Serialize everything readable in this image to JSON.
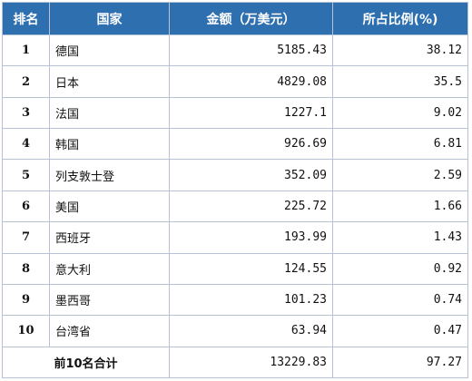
{
  "table": {
    "headers": {
      "rank": "排名",
      "country": "国家",
      "amount": "金额（万美元）",
      "share": "所占比例(%)"
    },
    "rows": [
      {
        "rank": "1",
        "country": "德国",
        "amount": "5185.43",
        "share": "38.12"
      },
      {
        "rank": "2",
        "country": "日本",
        "amount": "4829.08",
        "share": "35.5"
      },
      {
        "rank": "3",
        "country": "法国",
        "amount": "1227.1",
        "share": "9.02"
      },
      {
        "rank": "4",
        "country": "韩国",
        "amount": "926.69",
        "share": "6.81"
      },
      {
        "rank": "5",
        "country": "列支敦士登",
        "amount": "352.09",
        "share": "2.59"
      },
      {
        "rank": "6",
        "country": "美国",
        "amount": "225.72",
        "share": "1.66"
      },
      {
        "rank": "7",
        "country": "西班牙",
        "amount": "193.99",
        "share": "1.43"
      },
      {
        "rank": "8",
        "country": "意大利",
        "amount": "124.55",
        "share": "0.92"
      },
      {
        "rank": "9",
        "country": "墨西哥",
        "amount": "101.23",
        "share": "0.74"
      },
      {
        "rank": "10",
        "country": "台湾省",
        "amount": "63.94",
        "share": "0.47"
      }
    ],
    "total": {
      "label": "前10名合计",
      "amount": "13229.83",
      "share": "97.27"
    }
  }
}
